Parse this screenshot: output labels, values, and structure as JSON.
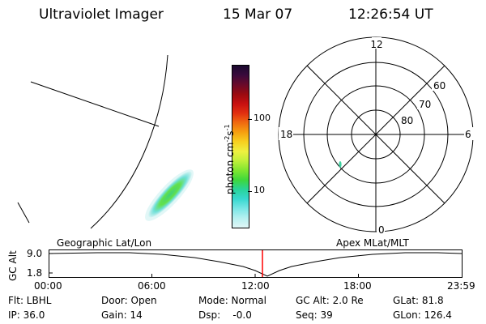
{
  "header": {
    "title": "Ultraviolet Imager",
    "date": "15 Mar 07",
    "time": "12:26:54 UT"
  },
  "colorbar": {
    "label": "photon cm",
    "label_exp1": "-2",
    "label_mid": "s",
    "label_exp2": "-1",
    "ticks": [
      "100",
      "10"
    ],
    "colors": [
      "#1a0a2e",
      "#3a0a3c",
      "#6a0a2a",
      "#9a0a10",
      "#c81010",
      "#e23010",
      "#f06a10",
      "#f6a010",
      "#f7d020",
      "#eef040",
      "#bff03a",
      "#7fe630",
      "#3ed83c",
      "#28d49a",
      "#38d8d0",
      "#7ae6e6",
      "#b6f0f0",
      "#e0f6f6"
    ]
  },
  "polar": {
    "mlt_labels": {
      "top": "12",
      "left": "18",
      "right": "6",
      "bottom": "0"
    },
    "lat_labels": [
      "60",
      "70",
      "80"
    ]
  },
  "timeline": {
    "axis_label": "GC Alt",
    "left_label": "Geographic Lat/Lon",
    "right_label": "Apex MLat/MLT",
    "y_ticks": [
      "9.0",
      "1.8"
    ],
    "x_ticks": [
      "00:00",
      "06:00",
      "12:00",
      "18:00",
      "23:59"
    ],
    "marker_time": "12:26:54",
    "marker_color": "#ff0000"
  },
  "info": {
    "flt": "Flt: LBHL",
    "ip": "IP: 36.0",
    "door": "Door: Open",
    "gain": "Gain: 14",
    "mode": "Mode: Normal",
    "dsp": "Dsp:    -0.0",
    "gcalt": "GC Alt: 2.0 Re",
    "seq": "Seq: 39",
    "glat": "GLat: 81.8",
    "glon": "GLon: 126.4"
  }
}
